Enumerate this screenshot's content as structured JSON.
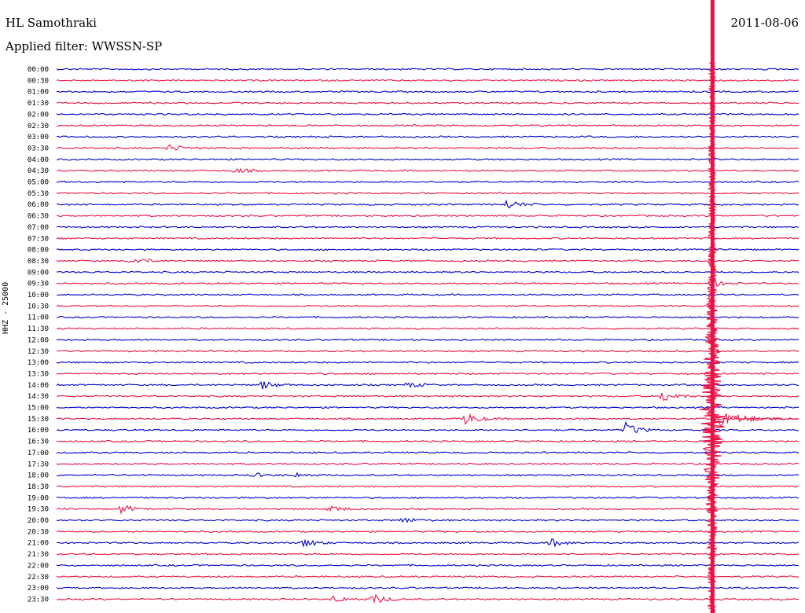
{
  "header": {
    "station": "HL Samothraki",
    "filter": "Applied filter: WWSSN-SP",
    "date": "2011-08-06"
  },
  "chart_data": {
    "type": "line",
    "title": "HL Samothraki",
    "subtitle": "Applied filter: WWSSN-SP",
    "ylabel": "HHZ - 25000",
    "date": "2011-08-06",
    "colors": {
      "trace_a": "#0000cc",
      "trace_b": "#ee1144"
    },
    "rows": [
      "00:00",
      "00:30",
      "01:00",
      "01:30",
      "02:00",
      "02:30",
      "03:00",
      "03:30",
      "04:00",
      "04:30",
      "05:00",
      "05:30",
      "06:00",
      "06:30",
      "07:00",
      "07:30",
      "08:00",
      "08:30",
      "09:00",
      "09:30",
      "10:00",
      "10:30",
      "11:00",
      "11:30",
      "12:00",
      "12:30",
      "13:00",
      "13:30",
      "14:00",
      "14:30",
      "15:00",
      "15:30",
      "16:00",
      "16:30",
      "17:00",
      "17:30",
      "18:00",
      "18:30",
      "19:00",
      "19:30",
      "20:00",
      "20:30",
      "21:00",
      "21:30",
      "22:00",
      "22:30",
      "23:00",
      "23:30"
    ],
    "events": [
      {
        "row": "03:30",
        "minute": 4.5,
        "amplitude": 0.5
      },
      {
        "row": "04:30",
        "minute": 7.2,
        "amplitude": 0.4
      },
      {
        "row": "06:00",
        "minute": 18.2,
        "amplitude": 0.7
      },
      {
        "row": "08:30",
        "minute": 3.0,
        "amplitude": 0.6
      },
      {
        "row": "09:30",
        "minute": 26.5,
        "amplitude": 0.5
      },
      {
        "row": "14:00",
        "minute": 8.3,
        "amplitude": 0.6
      },
      {
        "row": "14:00",
        "minute": 14.2,
        "amplitude": 0.4
      },
      {
        "row": "14:30",
        "minute": 24.5,
        "amplitude": 0.9
      },
      {
        "row": "15:30",
        "minute": 16.5,
        "amplitude": 0.9
      },
      {
        "row": "16:00",
        "minute": 23.0,
        "amplitude": 1.0
      },
      {
        "row": "18:00",
        "minute": 7.9,
        "amplitude": 0.3
      },
      {
        "row": "18:00",
        "minute": 9.7,
        "amplitude": 0.3
      },
      {
        "row": "19:30",
        "minute": 2.6,
        "amplitude": 0.6
      },
      {
        "row": "19:30",
        "minute": 11.0,
        "amplitude": 0.5
      },
      {
        "row": "20:00",
        "minute": 14.0,
        "amplitude": 0.4
      },
      {
        "row": "21:00",
        "minute": 10.0,
        "amplitude": 0.6
      },
      {
        "row": "21:00",
        "minute": 20.0,
        "amplitude": 0.6
      },
      {
        "row": "23:30",
        "minute": 11.2,
        "amplitude": 0.5
      },
      {
        "row": "23:30",
        "minute": 12.8,
        "amplitude": 0.7
      }
    ],
    "major_event": {
      "row": "15:30",
      "minute": 26.5,
      "amplitude": 10
    }
  }
}
